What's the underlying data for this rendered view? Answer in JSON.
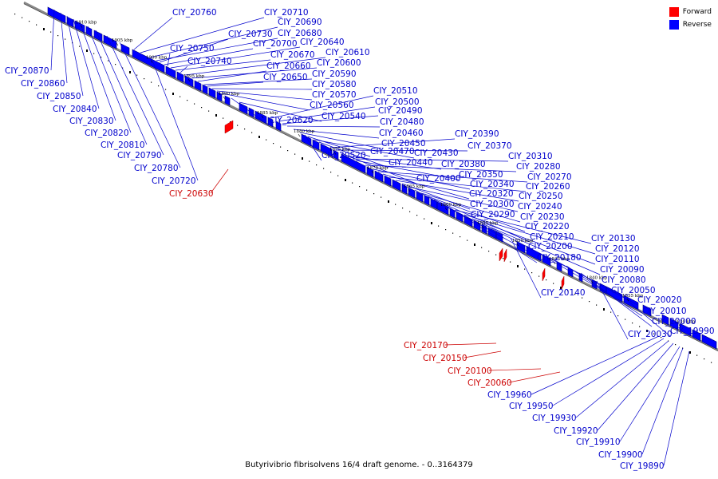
{
  "caption": "Butyrivibrio fibrisolvens 16/4 draft genome. - 0..3164379",
  "legend": [
    {
      "label": "Forward",
      "color": "#ff0000"
    },
    {
      "label": "Reverse",
      "color": "#0000ff"
    }
  ],
  "colors": {
    "forward": "#ff0000",
    "reverse": "#0000ff",
    "line": "#0000cc",
    "forward_line": "#cc0000",
    "axis": "#888888"
  },
  "ticks": [
    "1910 kbp",
    "1905 kbp",
    "1900 kbp",
    "1895 kbp",
    "1890 kbp",
    "1885 kbp",
    "1880 kbp",
    "1875 kbp",
    "1870 kbp",
    "1865 kbp",
    "1860 kbp",
    "1855 kbp",
    "1850 kbp",
    "1845 kbp",
    "1840 kbp",
    "1835 kbp",
    "1830 kbp"
  ],
  "forward_labels": [
    "CIY_20630",
    "CIY_20170",
    "CIY_20150",
    "CIY_20100",
    "CIY_20060"
  ],
  "reverse_labels": [
    "CIY_20760",
    "CIY_20710",
    "CIY_20690",
    "CIY_20680",
    "CIY_20730",
    "CIY_20700",
    "CIY_20640",
    "CIY_20750",
    "CIY_20670",
    "CIY_20610",
    "CIY_20740",
    "CIY_20600",
    "CIY_20660",
    "CIY_20590",
    "CIY_20650",
    "CIY_20580",
    "CIY_20570",
    "CIY_20560",
    "CIY_20620",
    "CIY_20540",
    "CIY_20510",
    "CIY_20500",
    "CIY_20490",
    "CIY_20480",
    "CIY_20460",
    "CIY_20450",
    "CIY_20470",
    "CIY_20430",
    "CIY_20520",
    "CIY_20440",
    "CIY_20390",
    "CIY_20370",
    "CIY_20380",
    "CIY_20310",
    "CIY_20350",
    "CIY_20280",
    "CIY_20400",
    "CIY_20340",
    "CIY_20270",
    "CIY_20320",
    "CIY_20260",
    "CIY_20250",
    "CIY_20300",
    "CIY_20240",
    "CIY_20290",
    "CIY_20230",
    "CIY_20220",
    "CIY_20210",
    "CIY_20200",
    "CIY_20180",
    "CIY_20130",
    "CIY_20120",
    "CIY_20110",
    "CIY_20090",
    "CIY_20080",
    "CIY_20140",
    "CIY_20050",
    "CIY_20020",
    "CIY_20010",
    "CIY_20000",
    "CIY_20030",
    "CIY_19990",
    "CIY_20870",
    "CIY_20860",
    "CIY_20850",
    "CIY_20840",
    "CIY_20830",
    "CIY_20820",
    "CIY_20810",
    "CIY_20790",
    "CIY_20780",
    "CIY_20720",
    "CIY_19960",
    "CIY_19950",
    "CIY_19930",
    "CIY_19920",
    "CIY_19910",
    "CIY_19900",
    "CIY_19890"
  ]
}
